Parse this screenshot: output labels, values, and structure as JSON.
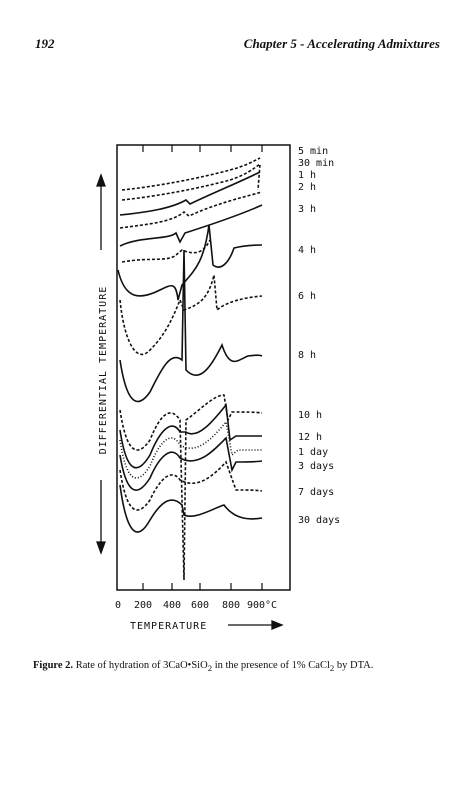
{
  "header": {
    "page_number": "192",
    "chapter": "Chapter 5 - Accelerating Admixtures"
  },
  "figure": {
    "y_axis_label": "DIFFERENTIAL TEMPERATURE",
    "x_axis_label": "TEMPERATURE",
    "x_tick_labels": [
      "0",
      "200",
      "400",
      "600",
      "800",
      "900°C"
    ],
    "curve_labels": [
      "5 min",
      "30 min",
      "1 h",
      "2 h",
      "3 h",
      "4 h",
      "6 h",
      "8 h",
      "10 h",
      "12 h",
      "1 day",
      "3 days",
      "7 days",
      "30 days"
    ]
  },
  "caption": {
    "label": "Figure 2.",
    "parts": [
      "Rate of hydration of 3CaO•SiO",
      "2",
      " in the presence of 1% CaCl",
      "2",
      " by DTA."
    ]
  }
}
